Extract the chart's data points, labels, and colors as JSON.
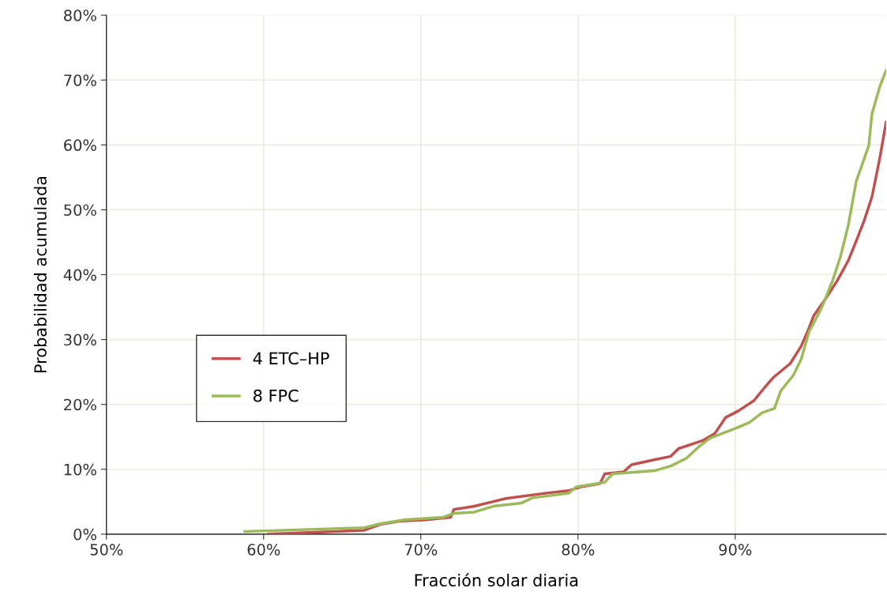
{
  "chart_data": {
    "type": "line",
    "xlabel": "Fracción solar diaria",
    "ylabel": "Probabilidad acumulada",
    "xlim": [
      50,
      99.6
    ],
    "ylim": [
      0,
      80
    ],
    "xticks": [
      {
        "value": 50,
        "label": "50%"
      },
      {
        "value": 60,
        "label": "60%"
      },
      {
        "value": 70,
        "label": "70%"
      },
      {
        "value": 80,
        "label": "80%"
      },
      {
        "value": 90,
        "label": "90%"
      }
    ],
    "yticks": [
      {
        "value": 0,
        "label": "0%"
      },
      {
        "value": 10,
        "label": "10%"
      },
      {
        "value": 20,
        "label": "20%"
      },
      {
        "value": 30,
        "label": "30%"
      },
      {
        "value": 40,
        "label": "40%"
      },
      {
        "value": 50,
        "label": "50%"
      },
      {
        "value": 60,
        "label": "60%"
      },
      {
        "value": 70,
        "label": "70%"
      },
      {
        "value": 80,
        "label": "80%"
      }
    ],
    "grid": true,
    "legend": "left",
    "marker": "none",
    "line_style": "solid",
    "series": [
      {
        "name": "4 ETC–HP",
        "color": "#c0504d",
        "x": [
          60.3,
          66.4,
          67.4,
          68.6,
          70.3,
          71.9,
          72.1,
          73.4,
          74.4,
          75.4,
          77.9,
          79.4,
          80.2,
          81.4,
          81.7,
          82.9,
          83.4,
          84.9,
          85.9,
          86.4,
          87.9,
          88.7,
          89.4,
          90.2,
          91.2,
          91.9,
          92.4,
          93.5,
          94.2,
          94.7,
          95.0,
          95.7,
          96.5,
          97.2,
          97.7,
          98.2,
          98.7,
          99.2,
          99.6
        ],
        "values": [
          0,
          0.6,
          1.5,
          2.0,
          2.2,
          2.6,
          3.8,
          4.3,
          4.9,
          5.5,
          6.3,
          6.7,
          7.3,
          7.8,
          9.3,
          9.6,
          10.7,
          11.5,
          12.0,
          13.2,
          14.4,
          15.5,
          18.0,
          19.0,
          20.6,
          22.7,
          24.1,
          26.3,
          29.0,
          31.8,
          33.7,
          36.1,
          39.1,
          42.2,
          45.2,
          48.3,
          52.0,
          58.0,
          63.5
        ]
      },
      {
        "name": "8 FPC",
        "color": "#9bbb59",
        "x": [
          58.8,
          66.4,
          67.4,
          68.9,
          71.4,
          72.1,
          73.4,
          74.6,
          76.4,
          77.1,
          79.4,
          79.9,
          81.7,
          82.2,
          84.9,
          85.9,
          86.9,
          87.7,
          88.4,
          89.9,
          90.9,
          91.7,
          92.5,
          92.9,
          93.7,
          94.2,
          94.7,
          95.5,
          96.2,
          96.7,
          97.2,
          97.7,
          98.5,
          98.7,
          99.2,
          99.6
        ],
        "values": [
          0.4,
          1.0,
          1.6,
          2.2,
          2.6,
          3.2,
          3.4,
          4.3,
          4.8,
          5.6,
          6.3,
          7.3,
          8.0,
          9.3,
          9.8,
          10.5,
          11.7,
          13.5,
          14.8,
          16.2,
          17.2,
          18.7,
          19.4,
          22.1,
          24.5,
          27.0,
          31.2,
          34.9,
          39.1,
          42.8,
          47.7,
          54.4,
          59.9,
          64.8,
          69.0,
          71.5
        ]
      }
    ]
  }
}
